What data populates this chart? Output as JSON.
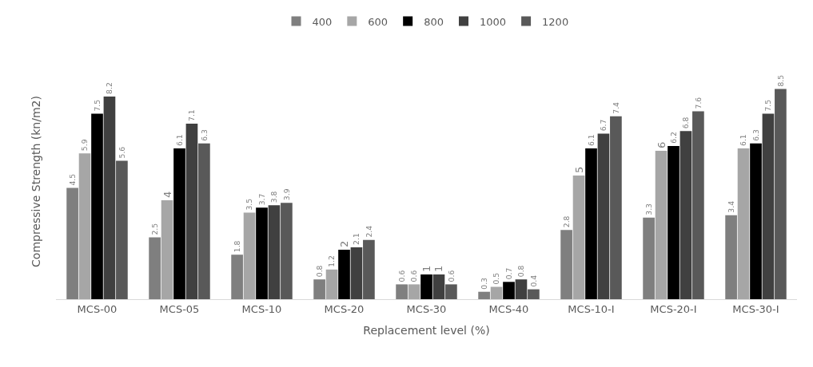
{
  "chart_data": {
    "type": "bar",
    "xlabel": "Replacement level (%)",
    "ylabel": "Compressive Strength (kn/m2)",
    "categories": [
      "MCS-00",
      "MCS-05",
      "MCS-10",
      "MCS-20",
      "MCS-30",
      "MCS-40",
      "MCS-10-I",
      "MCS-20-I",
      "MCS-30-I"
    ],
    "series": [
      {
        "name": "400",
        "color": "#7f7f7f",
        "values": [
          4.5,
          2.5,
          1.8,
          0.8,
          0.6,
          0.3,
          2.8,
          3.3,
          3.4
        ]
      },
      {
        "name": "600",
        "color": "#a6a6a6",
        "values": [
          5.9,
          4,
          3.5,
          1.2,
          0.6,
          0.5,
          5,
          6,
          6.1
        ]
      },
      {
        "name": "800",
        "color": "#000000",
        "values": [
          7.5,
          6.1,
          3.7,
          2,
          1,
          0.7,
          6.1,
          6.2,
          6.3
        ]
      },
      {
        "name": "1000",
        "color": "#404040",
        "values": [
          8.2,
          7.1,
          3.8,
          2.1,
          1,
          0.8,
          6.7,
          6.8,
          7.5
        ]
      },
      {
        "name": "1200",
        "color": "#595959",
        "values": [
          5.6,
          6.3,
          3.9,
          2.4,
          0.6,
          0.4,
          7.4,
          7.6,
          8.5
        ]
      }
    ],
    "data_labels": true,
    "legend": "top",
    "grid": false
  }
}
